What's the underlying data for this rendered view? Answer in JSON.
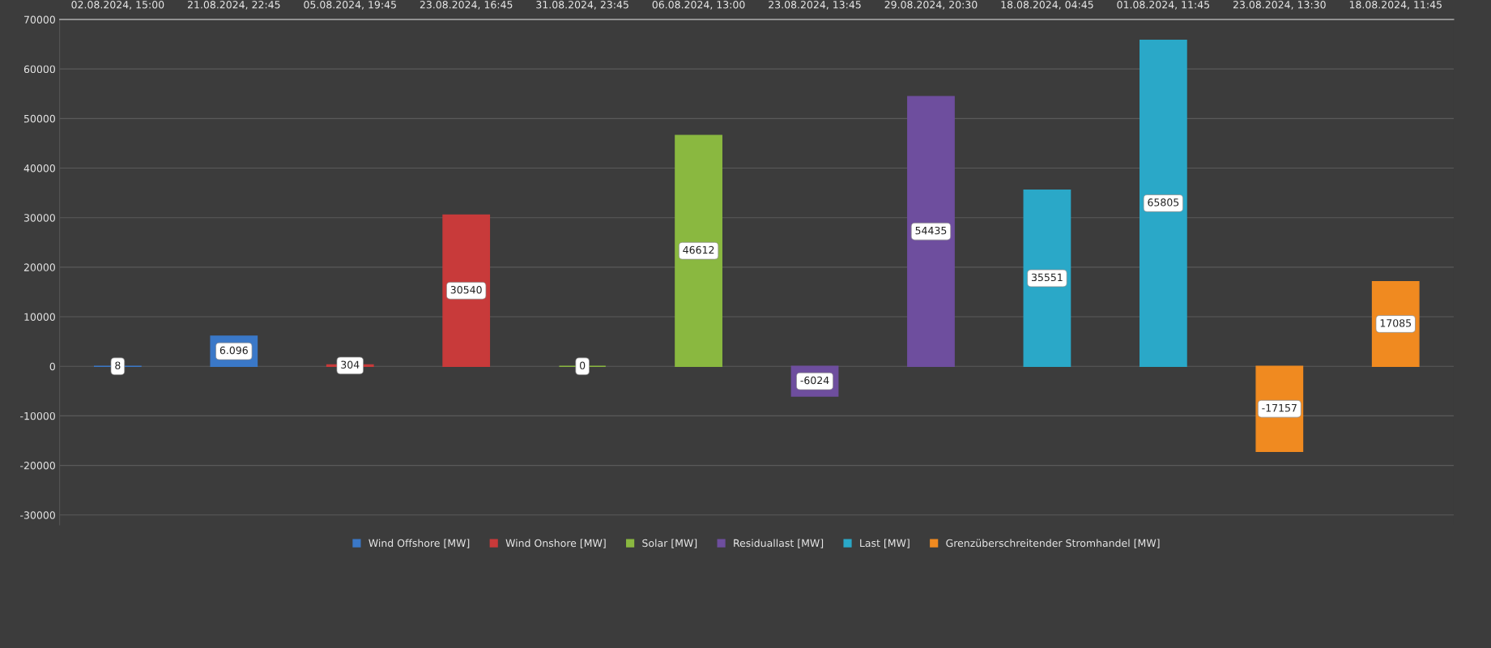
{
  "chart_data": {
    "type": "bar",
    "categories": [
      "02.08.2024, 15:00",
      "21.08.2024, 22:45",
      "05.08.2024, 19:45",
      "23.08.2024, 16:45",
      "31.08.2024, 23:45",
      "06.08.2024, 13:00",
      "23.08.2024, 13:45",
      "29.08.2024, 20:30",
      "18.08.2024, 04:45",
      "01.08.2024, 11:45",
      "23.08.2024, 13:30",
      "18.08.2024, 11:45"
    ],
    "series": [
      {
        "name": "Wind Offshore [MW]",
        "color": "#3a78c8",
        "values": [
          8,
          6096,
          null,
          null,
          null,
          null,
          null,
          null,
          null,
          null,
          null,
          null
        ],
        "value_labels": [
          "8",
          "6.096",
          null,
          null,
          null,
          null,
          null,
          null,
          null,
          null,
          null,
          null
        ]
      },
      {
        "name": "Wind Onshore [MW]",
        "color": "#c83a3a",
        "values": [
          null,
          null,
          304,
          30540,
          null,
          null,
          null,
          null,
          null,
          null,
          null,
          null
        ],
        "value_labels": [
          null,
          null,
          "304",
          "30540",
          null,
          null,
          null,
          null,
          null,
          null,
          null,
          null
        ]
      },
      {
        "name": "Solar [MW]",
        "color": "#8ab840",
        "values": [
          null,
          null,
          null,
          null,
          0,
          46612,
          null,
          null,
          null,
          null,
          null,
          null
        ],
        "value_labels": [
          null,
          null,
          null,
          null,
          "0",
          "46612",
          null,
          null,
          null,
          null,
          null,
          null
        ]
      },
      {
        "name": "Residuallast [MW]",
        "color": "#6e4e9e",
        "values": [
          null,
          null,
          null,
          null,
          null,
          null,
          -6024,
          54435,
          null,
          null,
          null,
          null
        ],
        "value_labels": [
          null,
          null,
          null,
          null,
          null,
          null,
          "-6024",
          "54435",
          null,
          null,
          null,
          null
        ]
      },
      {
        "name": "Last [MW]",
        "color": "#2aa8c8",
        "values": [
          null,
          null,
          null,
          null,
          null,
          null,
          null,
          null,
          35551,
          65805,
          null,
          null
        ],
        "value_labels": [
          null,
          null,
          null,
          null,
          null,
          null,
          null,
          null,
          "35551",
          "65805",
          null,
          null
        ]
      },
      {
        "name": "Grenzüberschreitender Stromhandel [MW]",
        "color": "#f08a20",
        "values": [
          null,
          null,
          null,
          null,
          null,
          null,
          null,
          null,
          null,
          null,
          -17157,
          17085
        ],
        "value_labels": [
          null,
          null,
          null,
          null,
          null,
          null,
          null,
          null,
          null,
          null,
          "-17157",
          "17085"
        ]
      }
    ],
    "ylim": [
      -32000,
      70000
    ],
    "yticks": [
      -30000,
      -20000,
      -10000,
      0,
      10000,
      20000,
      30000,
      40000,
      50000,
      60000,
      70000
    ],
    "grid": "y",
    "legend": "bottom"
  }
}
